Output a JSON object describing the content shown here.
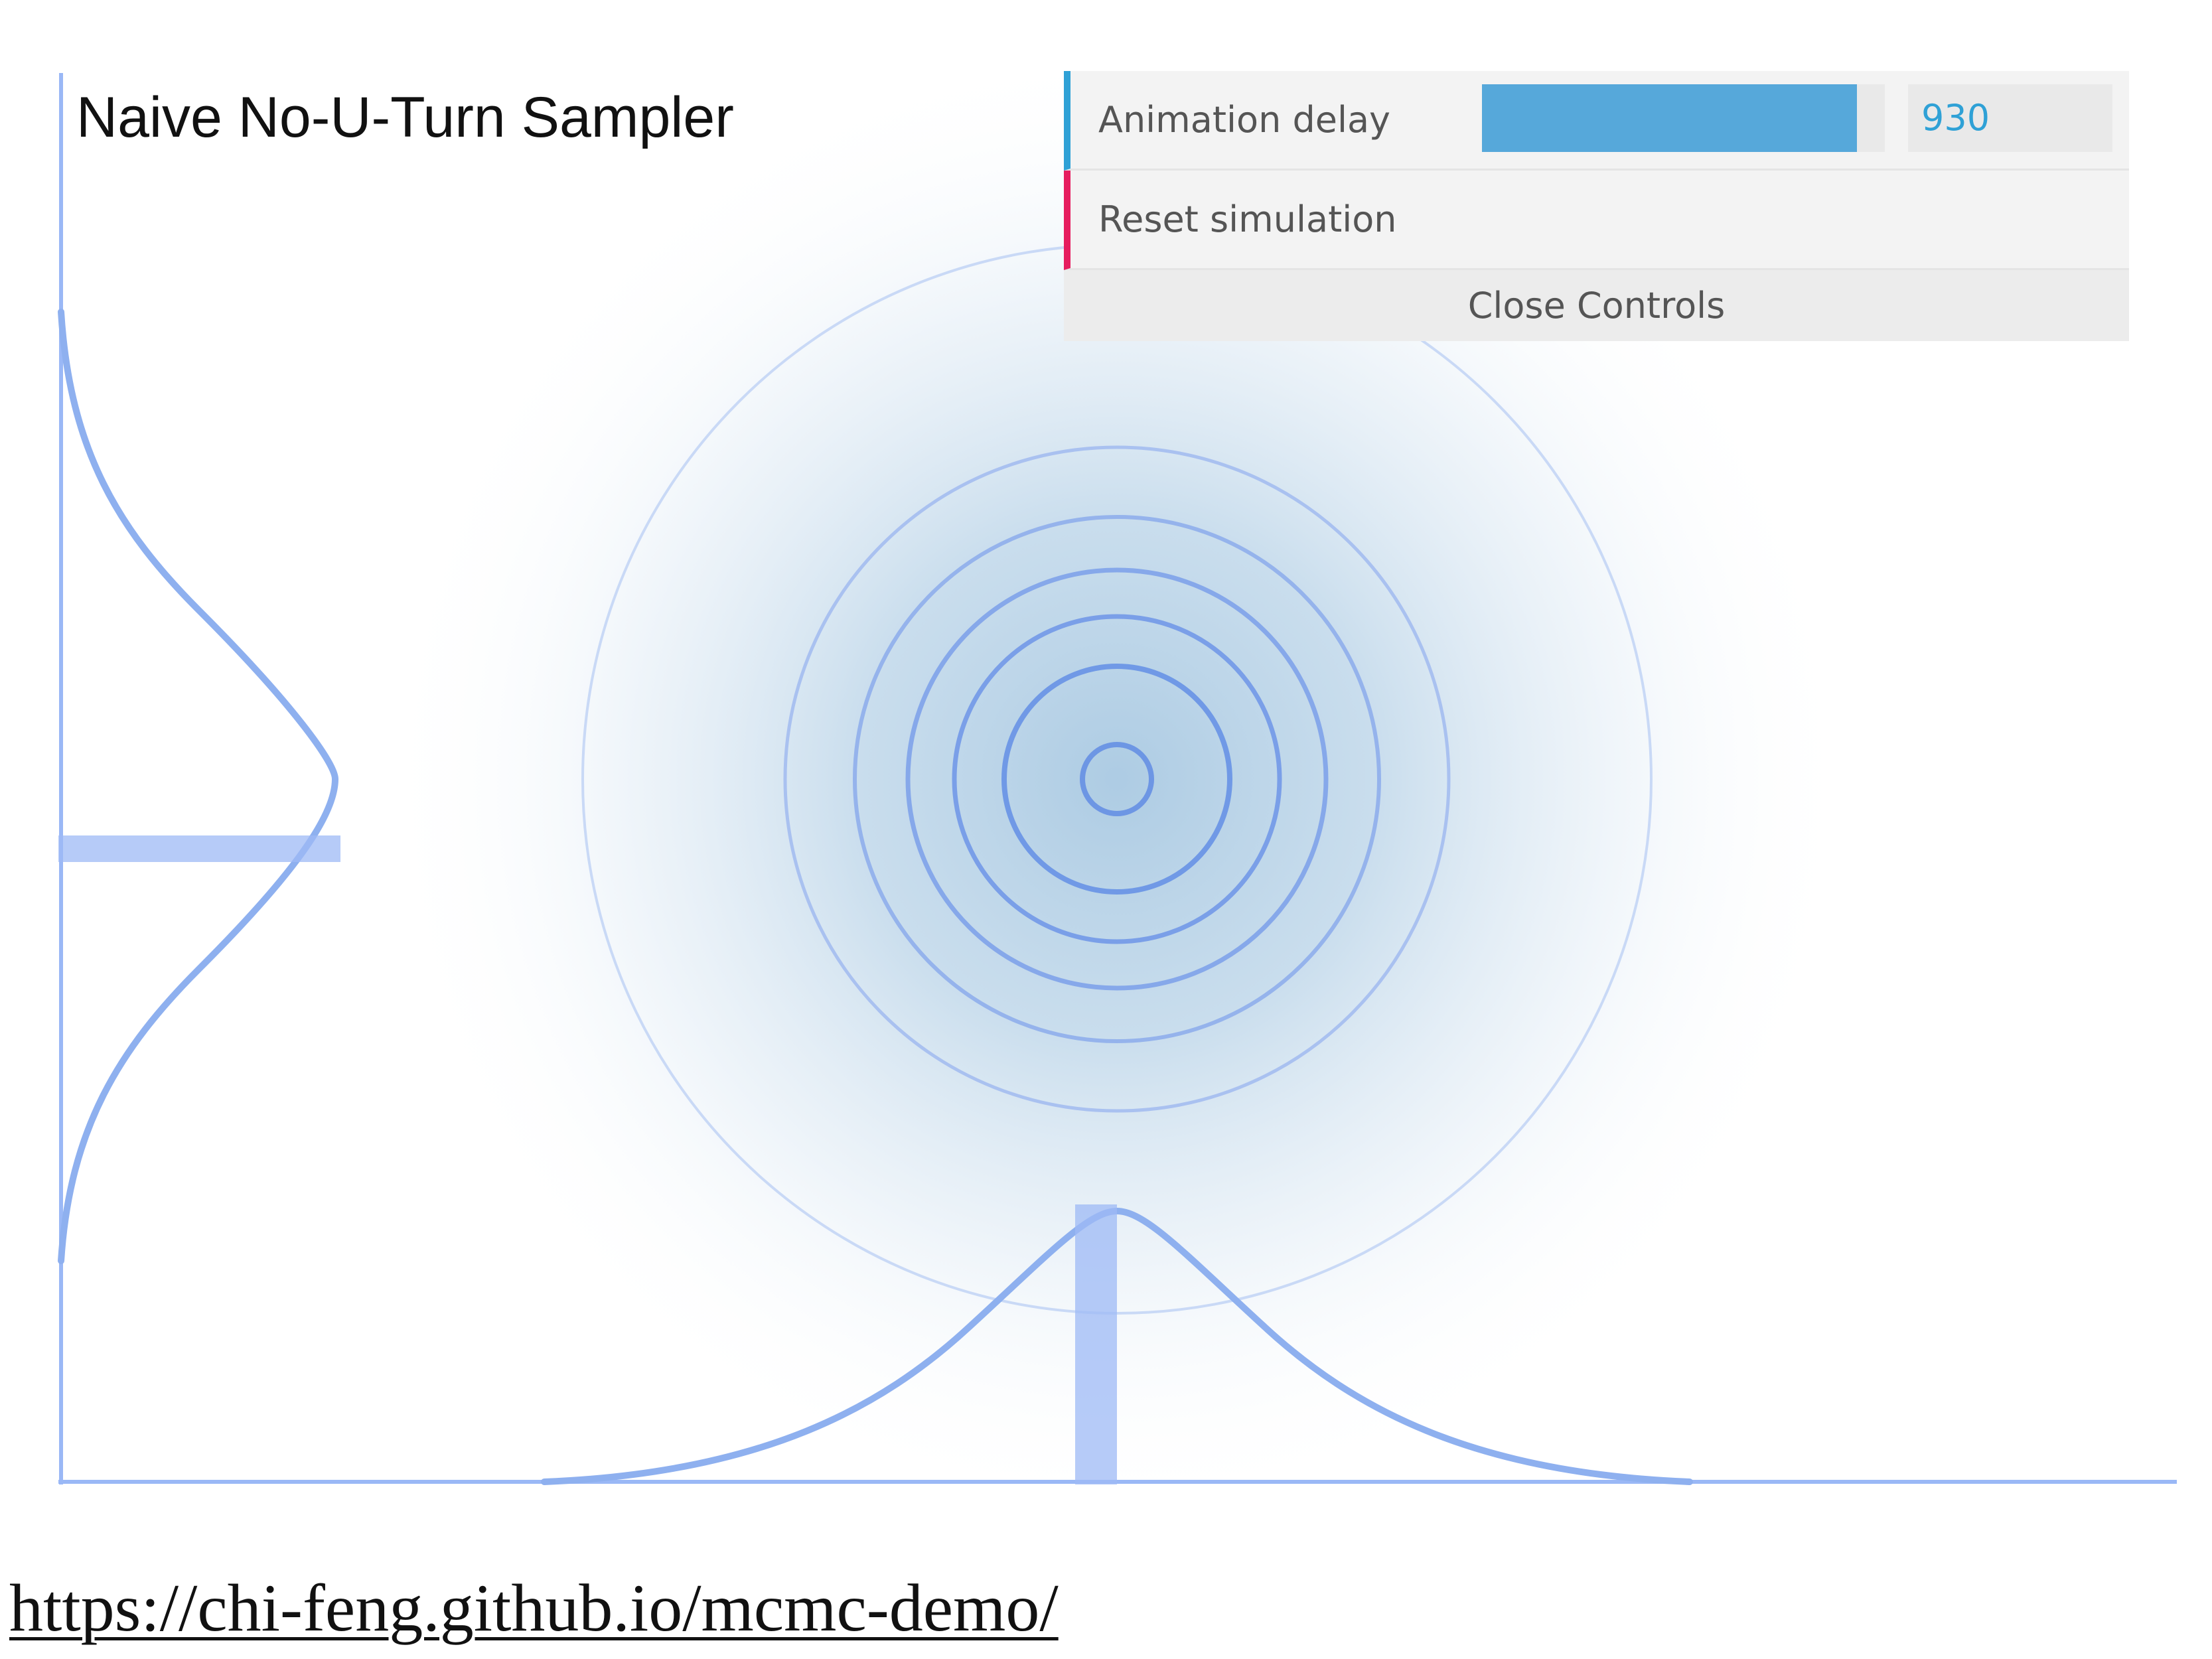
{
  "simulation": {
    "title": "Naive No-U-Turn Sampler",
    "accent_color": "#6d96ea",
    "axis_color": "#9ab8f6"
  },
  "controls": {
    "animation_delay": {
      "label": "Animation delay",
      "value": "930",
      "slider_fraction": 0.93,
      "bar_color": "#56a8da",
      "stripe_color": "#2fa1d6"
    },
    "reset": {
      "label": "Reset simulation",
      "stripe_color": "#e61d5f"
    },
    "close_label": "Close Controls"
  },
  "footer": {
    "link_text": "https://chi-feng.github.io/mcmc-demo/"
  }
}
